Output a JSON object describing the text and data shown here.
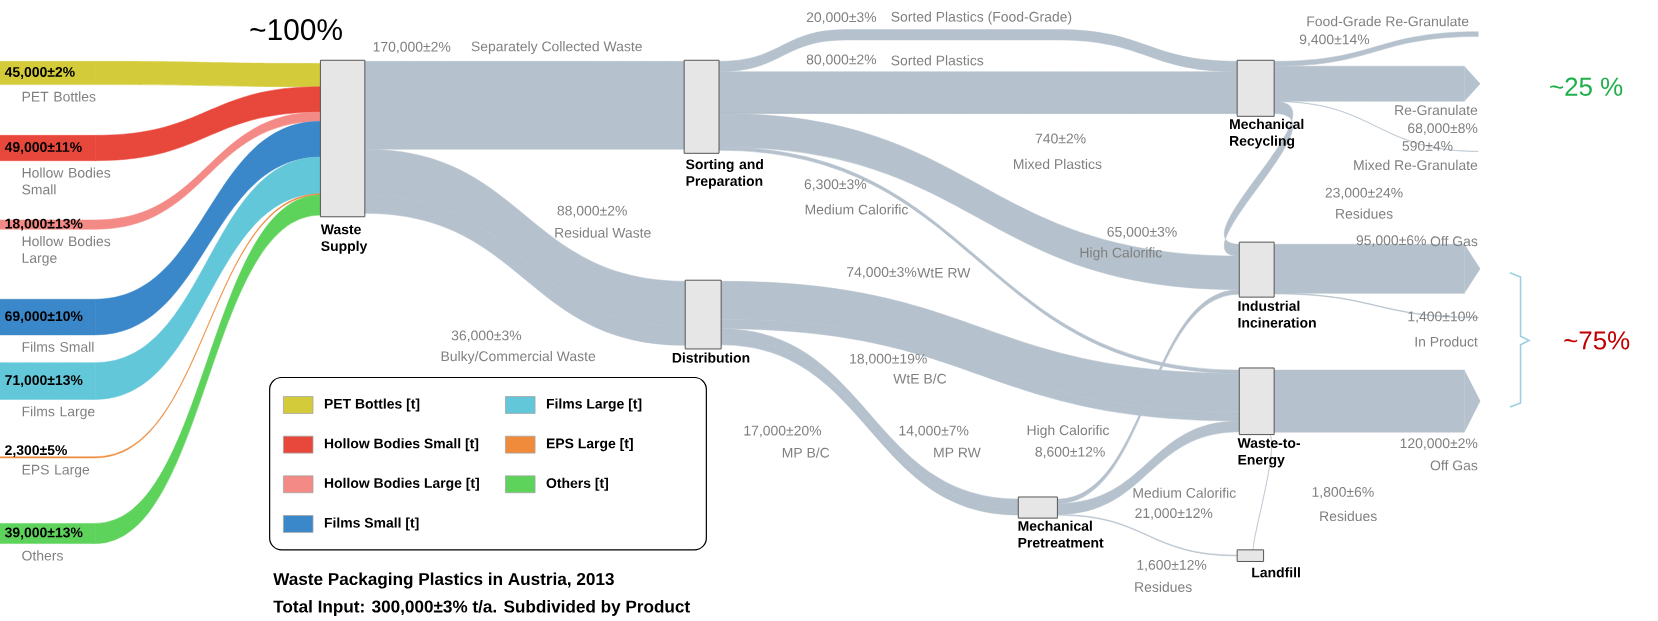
{
  "chart_data": {
    "type": "other",
    "title": "Waste Packaging Plastics in Austria, 2013",
    "subtitle": "Total Input: 300,000±3% t/a. Subdivided by Product",
    "categories": [
      "PET Bottles",
      "Hollow Bodies Small",
      "Hollow Bodies Large",
      "Films Small",
      "Films Large",
      "EPS Large",
      "Others",
      "Separately Collected Waste",
      "Sorted Plastics (Food-Grade)",
      "Sorted Plastics",
      "Food-Grade Re-Granulate",
      "Re-Granulate",
      "Mixed Plastics",
      "Mixed Re-Granulate",
      "Medium Calorific",
      "Residues",
      "Residual Waste",
      "High Calorific",
      "Off Gas",
      "WtE RW",
      "Bulky/Commercial Waste",
      "In Product",
      "WtE B/C",
      "MP B/C",
      "MP RW",
      "High Calorific",
      "Off Gas",
      "Medium Calorific",
      "Residues",
      "Residues"
    ],
    "series": [
      {
        "name": "PET Bottles [t]",
        "color": "#d4cb3a",
        "values": [
          45000,
          null,
          null,
          null,
          null,
          null,
          null,
          null,
          null,
          null,
          null,
          null,
          null,
          null,
          null,
          null,
          null,
          null,
          null,
          null,
          null,
          null,
          null,
          null,
          null,
          null,
          null,
          null,
          null,
          null
        ],
        "value_labels": [
          "45,000±2%",
          null,
          null,
          null,
          null,
          null,
          null,
          null,
          null,
          null,
          null,
          null,
          null,
          null,
          null,
          null,
          null,
          null,
          null,
          null,
          null,
          null,
          null,
          null,
          null,
          null,
          null,
          null,
          null,
          null
        ]
      },
      {
        "name": "Hollow Bodies Small [t]",
        "color": "#e8473b",
        "values": [
          null,
          49000,
          null,
          null,
          null,
          null,
          null,
          null,
          null,
          null,
          null,
          null,
          null,
          null,
          null,
          null,
          null,
          null,
          null,
          null,
          null,
          null,
          null,
          null,
          null,
          null,
          null,
          null,
          null,
          null
        ],
        "value_labels": [
          null,
          "49,000±11%",
          null,
          null,
          null,
          null,
          null,
          null,
          null,
          null,
          null,
          null,
          null,
          null,
          null,
          null,
          null,
          null,
          null,
          null,
          null,
          null,
          null,
          null,
          null,
          null,
          null,
          null,
          null,
          null
        ]
      },
      {
        "name": "Hollow Bodies Large [t]",
        "color": "#f48a85",
        "values": [
          null,
          null,
          18000,
          null,
          null,
          null,
          null,
          null,
          null,
          null,
          null,
          null,
          null,
          null,
          null,
          null,
          null,
          null,
          null,
          null,
          null,
          null,
          null,
          null,
          null,
          null,
          null,
          null,
          null,
          null
        ],
        "value_labels": [
          null,
          null,
          "18,000±13%",
          null,
          null,
          null,
          null,
          null,
          null,
          null,
          null,
          null,
          null,
          null,
          null,
          null,
          null,
          null,
          null,
          null,
          null,
          null,
          null,
          null,
          null,
          null,
          null,
          null,
          null,
          null
        ]
      },
      {
        "name": "Films Small [t]",
        "color": "#3a87c9",
        "values": [
          null,
          null,
          null,
          69000,
          null,
          null,
          null,
          null,
          null,
          null,
          null,
          null,
          null,
          null,
          null,
          null,
          null,
          null,
          null,
          null,
          null,
          null,
          null,
          null,
          null,
          null,
          null,
          null,
          null,
          null
        ],
        "value_labels": [
          null,
          null,
          null,
          "69,000±10%",
          null,
          null,
          null,
          null,
          null,
          null,
          null,
          null,
          null,
          null,
          null,
          null,
          null,
          null,
          null,
          null,
          null,
          null,
          null,
          null,
          null,
          null,
          null,
          null,
          null,
          null
        ]
      },
      {
        "name": "Films Large [t]",
        "color": "#63c7da",
        "values": [
          null,
          null,
          null,
          null,
          71000,
          null,
          null,
          null,
          null,
          null,
          null,
          null,
          null,
          null,
          null,
          null,
          null,
          null,
          null,
          null,
          null,
          null,
          null,
          null,
          null,
          null,
          null,
          null,
          null,
          null
        ],
        "value_labels": [
          null,
          null,
          null,
          null,
          "71,000±13%",
          null,
          null,
          null,
          null,
          null,
          null,
          null,
          null,
          null,
          null,
          null,
          null,
          null,
          null,
          null,
          null,
          null,
          null,
          null,
          null,
          null,
          null,
          null,
          null,
          null
        ]
      },
      {
        "name": "EPS Large [t]",
        "color": "#ef8b3b",
        "values": [
          null,
          null,
          null,
          null,
          null,
          2300,
          null,
          null,
          null,
          null,
          null,
          null,
          null,
          null,
          null,
          null,
          null,
          null,
          null,
          null,
          null,
          null,
          null,
          null,
          null,
          null,
          null,
          null,
          null,
          null
        ],
        "value_labels": [
          null,
          null,
          null,
          null,
          null,
          "2,300±5%",
          null,
          null,
          null,
          null,
          null,
          null,
          null,
          null,
          null,
          null,
          null,
          null,
          null,
          null,
          null,
          null,
          null,
          null,
          null,
          null,
          null,
          null,
          null,
          null
        ]
      },
      {
        "name": "Others [t]",
        "color": "#5ed35c",
        "values": [
          null,
          null,
          null,
          null,
          null,
          null,
          39000,
          null,
          null,
          null,
          null,
          null,
          null,
          null,
          null,
          null,
          null,
          null,
          null,
          null,
          null,
          null,
          null,
          null,
          null,
          null,
          null,
          null,
          null,
          null
        ],
        "value_labels": [
          null,
          null,
          null,
          null,
          null,
          null,
          "39,000±13%",
          null,
          null,
          null,
          null,
          null,
          null,
          null,
          null,
          null,
          null,
          null,
          null,
          null,
          null,
          null,
          null,
          null,
          null,
          null,
          null,
          null,
          null,
          null
        ]
      },
      {
        "color": "#b5c1cc",
        "values": [
          null,
          null,
          null,
          null,
          null,
          null,
          null,
          170000,
          20000,
          80000,
          9400,
          68000,
          740,
          590,
          6300,
          23000,
          88000,
          65000,
          95000,
          74000,
          36000,
          1400,
          18000,
          17000,
          14000,
          8600,
          120000,
          21000,
          1800,
          1600
        ],
        "value_labels": [
          null,
          null,
          null,
          null,
          null,
          null,
          null,
          "170,000±2%",
          "20,000±3%",
          "80,000±2%",
          "9,400±14%",
          "68,000±8%",
          "740±2%",
          "590±4%",
          "6,300±3%",
          "23,000±24%",
          "88,000±2%",
          "65,000±3%",
          "95,000±6%",
          "74,000±3%",
          "36,000±3%",
          "1,400±10%",
          "18,000±19%",
          "17,000±20%",
          "14,000±7%",
          "8,600±12%",
          "120,000±2%",
          "21,000±12%",
          "1,800±6%",
          "1,600±12%"
        ]
      }
    ],
    "legend": "bottom left",
    "annotations": [
      "~100%",
      "~25 %",
      "~75%",
      "Waste Supply",
      "Sorting and Preparation",
      "Distribution",
      "Mechanical Recycling",
      "Industrial Incineration",
      "Waste-to-Energy",
      "Mechanical Pretreatment",
      "Landfill"
    ]
  }
}
